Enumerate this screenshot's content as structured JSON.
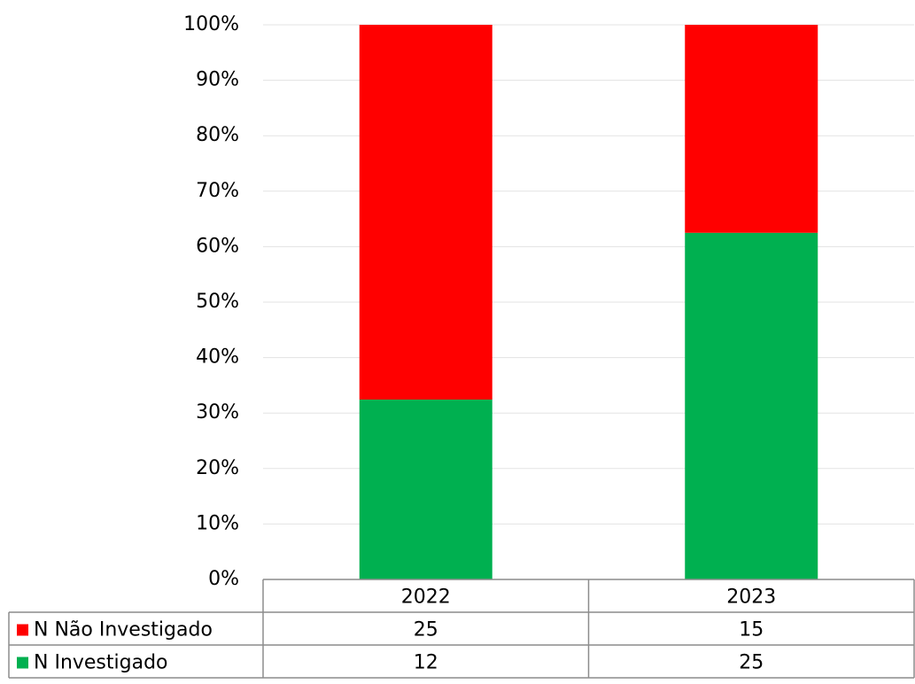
{
  "chart_data": {
    "type": "bar",
    "stacked": "percent",
    "categories": [
      "2022",
      "2023"
    ],
    "series": [
      {
        "name": "N Não Investigado",
        "color": "#ff0000",
        "values": [
          25,
          15
        ]
      },
      {
        "name": "N Investigado",
        "color": "#00b050",
        "values": [
          12,
          25
        ]
      }
    ],
    "ylim": [
      0,
      100
    ],
    "yticks": [
      {
        "value": 0,
        "label": "0%"
      },
      {
        "value": 10,
        "label": "10%"
      },
      {
        "value": 20,
        "label": "20%"
      },
      {
        "value": 30,
        "label": "30%"
      },
      {
        "value": 40,
        "label": "40%"
      },
      {
        "value": 50,
        "label": "50%"
      },
      {
        "value": 60,
        "label": "60%"
      },
      {
        "value": 70,
        "label": "70%"
      },
      {
        "value": 80,
        "label": "80%"
      },
      {
        "value": 90,
        "label": "90%"
      },
      {
        "value": 100,
        "label": "100%"
      }
    ],
    "grid": true,
    "data_table": true
  }
}
